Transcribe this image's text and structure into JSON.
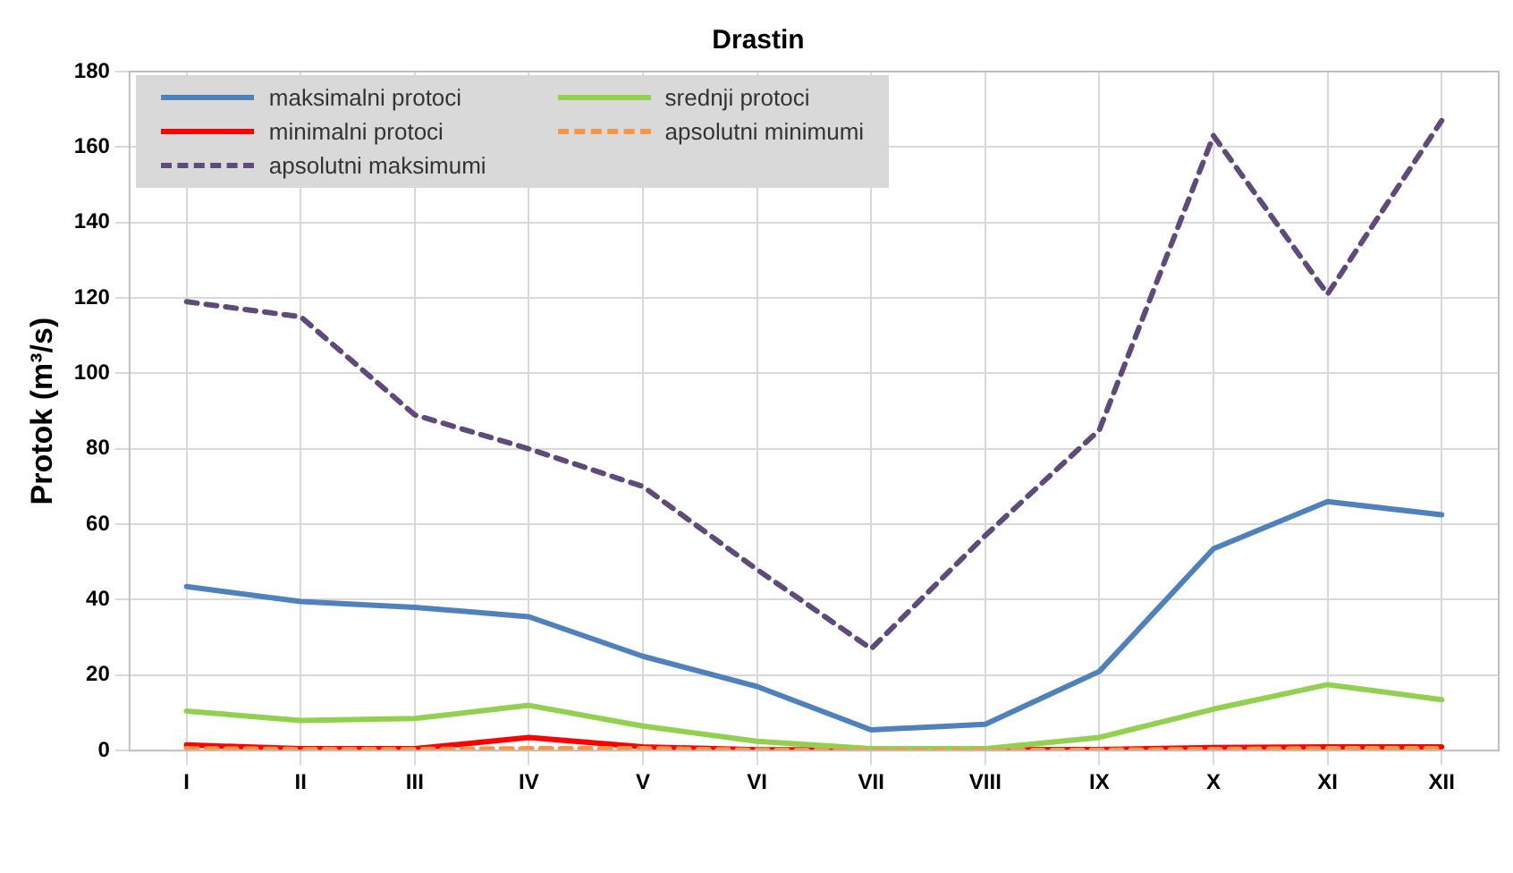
{
  "chart_data": {
    "type": "line",
    "title": "Drastin",
    "ylabel": "Protok (m³/s)",
    "categories": [
      "I",
      "II",
      "III",
      "IV",
      "V",
      "VI",
      "VII",
      "VIII",
      "IX",
      "X",
      "XI",
      "XII"
    ],
    "ylim": [
      0,
      180
    ],
    "yticks": [
      0,
      20,
      40,
      60,
      80,
      100,
      120,
      140,
      160,
      180
    ],
    "grid": true,
    "legend": "top left",
    "marker": "none",
    "series": [
      {
        "name": "maksimalni protoci",
        "color": "#4f81bd",
        "line_style": "solid",
        "values": [
          43.5,
          39.5,
          38,
          35.5,
          25,
          17,
          5.5,
          7,
          21,
          53.5,
          66,
          62.5
        ]
      },
      {
        "name": "srednji protoci",
        "color": "#92d050",
        "line_style": "solid",
        "values": [
          10.5,
          8,
          8.5,
          12,
          6.5,
          2.5,
          0.5,
          0.5,
          3.5,
          11,
          17.5,
          13.5
        ]
      },
      {
        "name": "minimalni protoci",
        "color": "#ff0000",
        "line_style": "solid",
        "values": [
          1.5,
          0.5,
          0.5,
          3.5,
          1,
          0.2,
          null,
          null,
          0.3,
          0.8,
          1,
          1
        ]
      },
      {
        "name": "apsolutni minimumi",
        "color": "#f79646",
        "line_style": "dashed",
        "values": [
          0.5,
          0.3,
          0.3,
          0.5,
          0.5,
          0.1,
          0,
          0,
          0.1,
          0.3,
          0.5,
          0.5
        ]
      },
      {
        "name": "apsolutni maksimumi",
        "color": "#604a7b",
        "line_style": "dashed",
        "values": [
          119,
          115,
          89,
          80,
          70,
          48,
          27,
          57,
          85,
          163,
          121,
          167
        ]
      }
    ]
  }
}
